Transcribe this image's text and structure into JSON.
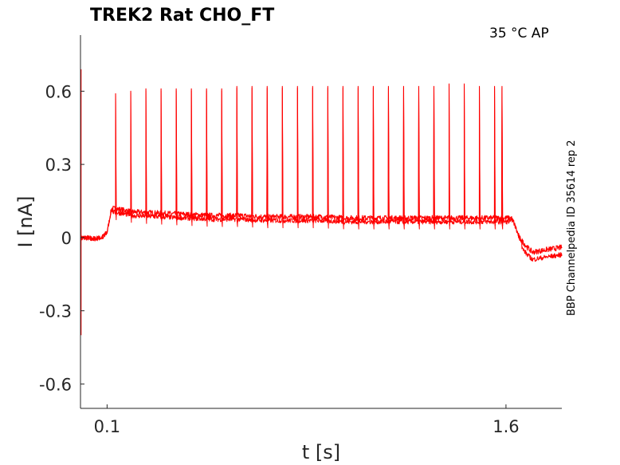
{
  "chart_data": {
    "type": "line",
    "title": "TREK2  Rat  CHO_FT",
    "annotation": "35 °C  AP",
    "side_label": "BBP Channelpedia ID 35614 rep 2",
    "xlabel": "t [s]",
    "ylabel": "I [nA]",
    "xlim": [
      0.0,
      1.81
    ],
    "ylim": [
      -0.7,
      0.83
    ],
    "x_ticks": [
      0.1,
      1.6
    ],
    "x_tick_labels": [
      "0.1",
      "1.6"
    ],
    "y_ticks": [
      0.6,
      0.3,
      0,
      -0.3,
      -0.6
    ],
    "y_tick_labels": [
      "0.6",
      "0.3",
      "0",
      "-0.3",
      "-0.6"
    ],
    "grid": false,
    "color": "#ff0000",
    "series": [
      {
        "x": [
          0.0,
          0.02,
          0.05,
          0.08,
          0.1,
          0.11,
          0.115,
          0.12,
          0.15,
          0.2,
          0.3,
          0.4,
          0.5,
          0.6,
          0.7,
          0.8,
          0.9,
          1.0,
          1.1,
          1.2,
          1.3,
          1.4,
          1.5,
          1.6,
          1.62,
          1.63,
          1.65,
          1.68,
          1.7,
          1.75,
          1.81
        ],
        "y": [
          0.0,
          0.0,
          -0.005,
          0.0,
          0.02,
          0.08,
          0.11,
          0.12,
          0.115,
          0.105,
          0.1,
          0.095,
          0.09,
          0.09,
          0.085,
          0.085,
          0.085,
          0.08,
          0.08,
          0.08,
          0.08,
          0.08,
          0.08,
          0.08,
          0.08,
          0.06,
          0.0,
          -0.04,
          -0.06,
          -0.05,
          -0.04
        ]
      }
    ],
    "spike_peaks": {
      "t": [
        0.132,
        0.189,
        0.246,
        0.303,
        0.36,
        0.417,
        0.474,
        0.531,
        0.588,
        0.645,
        0.702,
        0.759,
        0.816,
        0.873,
        0.93,
        0.987,
        1.044,
        1.101,
        1.158,
        1.215,
        1.272,
        1.329,
        1.386,
        1.443,
        1.5,
        1.557,
        1.585
      ],
      "peak": [
        0.59,
        0.6,
        0.61,
        0.61,
        0.61,
        0.61,
        0.61,
        0.61,
        0.62,
        0.62,
        0.62,
        0.62,
        0.62,
        0.62,
        0.62,
        0.62,
        0.62,
        0.62,
        0.62,
        0.62,
        0.62,
        0.62,
        0.63,
        0.63,
        0.62,
        0.62,
        0.62
      ]
    },
    "onset_artifact": {
      "t": 0.0,
      "max": 0.69,
      "min": -0.4
    }
  }
}
